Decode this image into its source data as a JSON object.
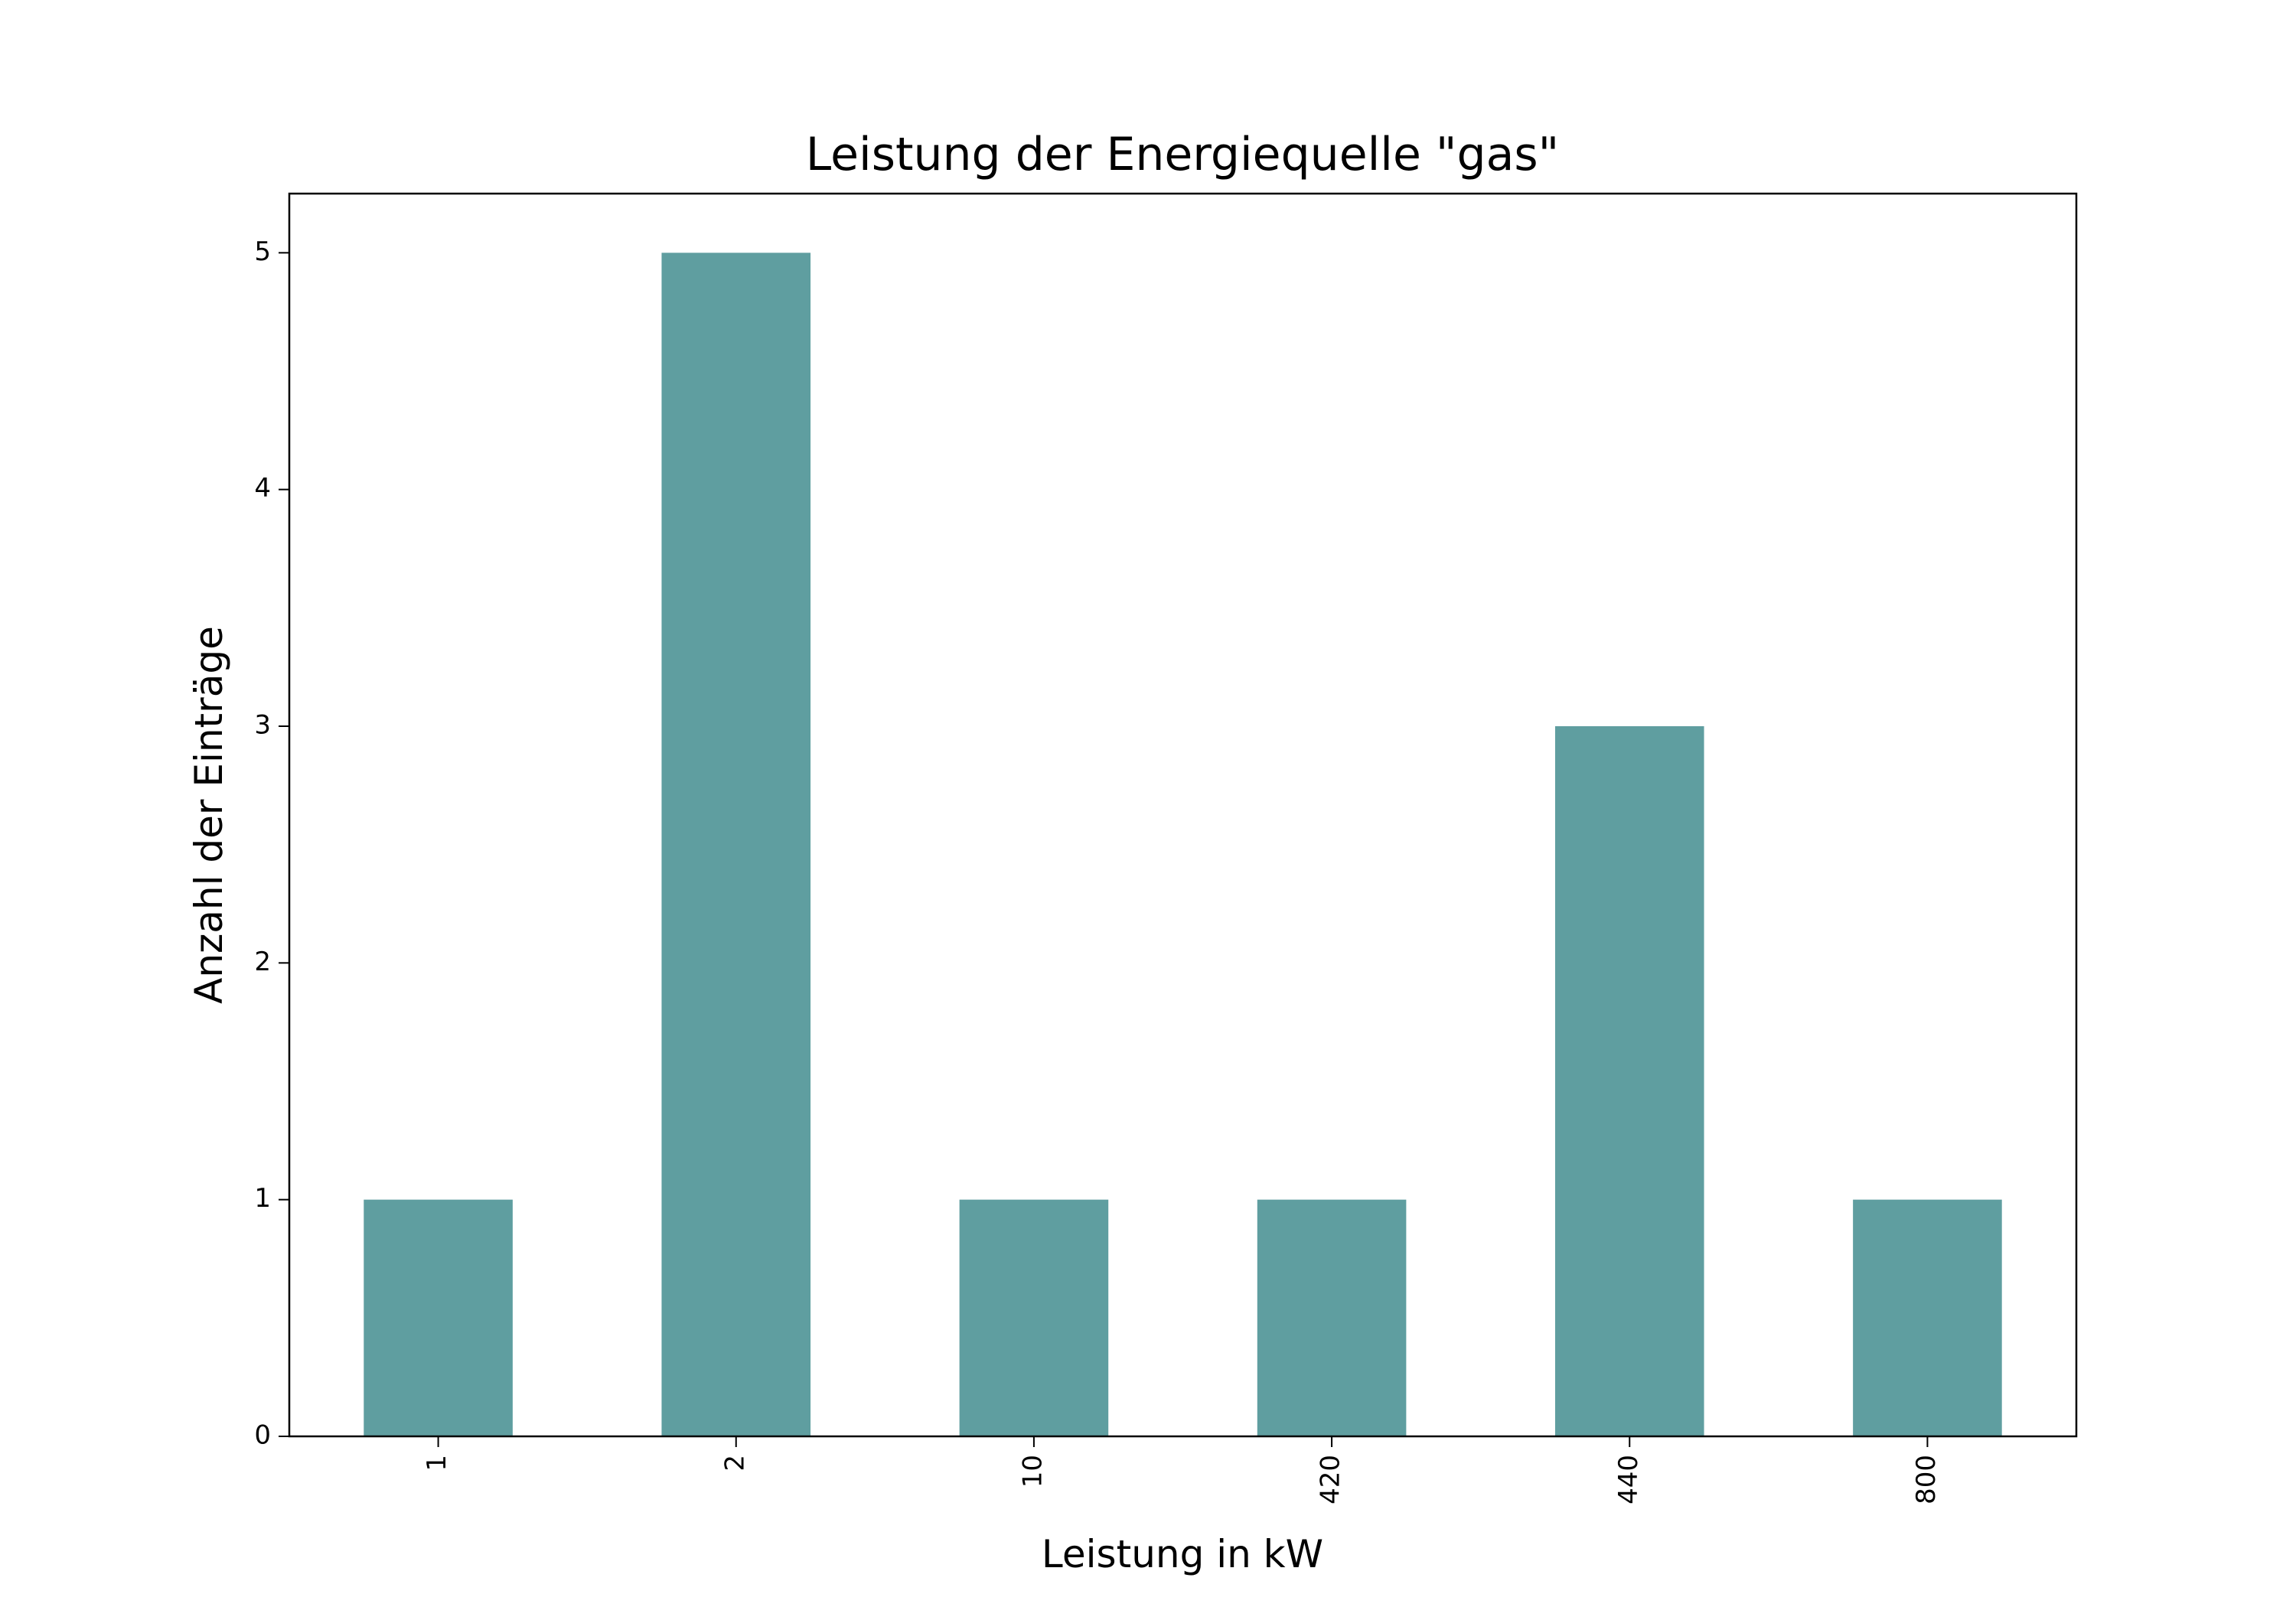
{
  "chart_data": {
    "type": "bar",
    "title": "Leistung der Energiequelle \"gas\"",
    "xlabel": "Leistung in kW",
    "ylabel": "Anzahl der Einträge",
    "categories": [
      "1",
      "2",
      "10",
      "420",
      "440",
      "800"
    ],
    "values": [
      1,
      5,
      1,
      1,
      3,
      1
    ],
    "ylim": [
      0,
      5.25
    ],
    "yticks": [
      "0",
      "1",
      "2",
      "3",
      "4",
      "5"
    ],
    "grid": false,
    "legend": "none",
    "bar_color": "#5f9ea0",
    "x_tick_rotation": "vertical"
  }
}
